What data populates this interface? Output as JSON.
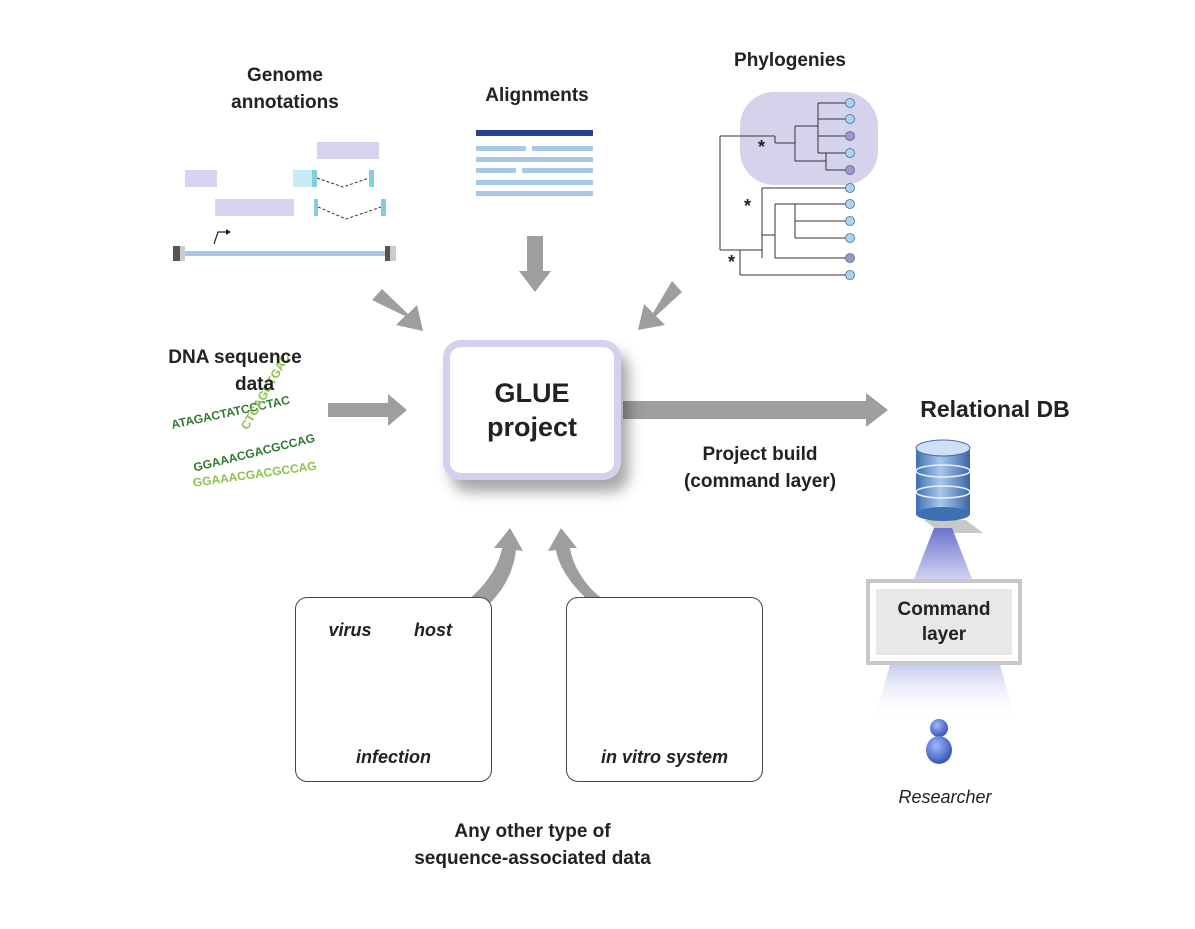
{
  "labels": {
    "genome": [
      "Genome",
      "annotations"
    ],
    "alignments": "Alignments",
    "phylogenies": "Phylogenies",
    "dna": [
      "DNA sequence",
      "data"
    ],
    "glue": [
      "GLUE",
      "project"
    ],
    "relational_db": "Relational DB",
    "project_build": [
      "Project build",
      "(command layer)"
    ],
    "command_layer": [
      "Command",
      "layer"
    ],
    "researcher": "Researcher",
    "any_other": [
      "Any other type of",
      "sequence-associated data"
    ],
    "virus": "virus",
    "host": "host",
    "infection": "infection",
    "in_vitro": "in vitro system",
    "asterisk": "*"
  },
  "dna_text": {
    "line1": "ATAGACTATCCCTAC",
    "line2": "CTCAGCTGAC",
    "line3": "GGAAACGACGCCAG",
    "line4": "GGAAACGACGCCAG"
  },
  "colors": {
    "arrow": "#9e9e9e",
    "align_dark": "#2a3f8f",
    "align_light": "#a8c8ea",
    "genome_purple": "#d6d4ee",
    "genome_cyan": "#7fd0dc",
    "phylo_bg": "#d5d3ec",
    "tip_light": "#a8d4f0",
    "tip_purple": "#9a98c8",
    "virus_blue": "#2b3c91",
    "virus_green": "#b5e08a",
    "virus_pink": "#e0197d",
    "dish_red": "#d01818",
    "db_blue": "#5a8cc8",
    "researcher_blue": "#4a6fc8"
  }
}
